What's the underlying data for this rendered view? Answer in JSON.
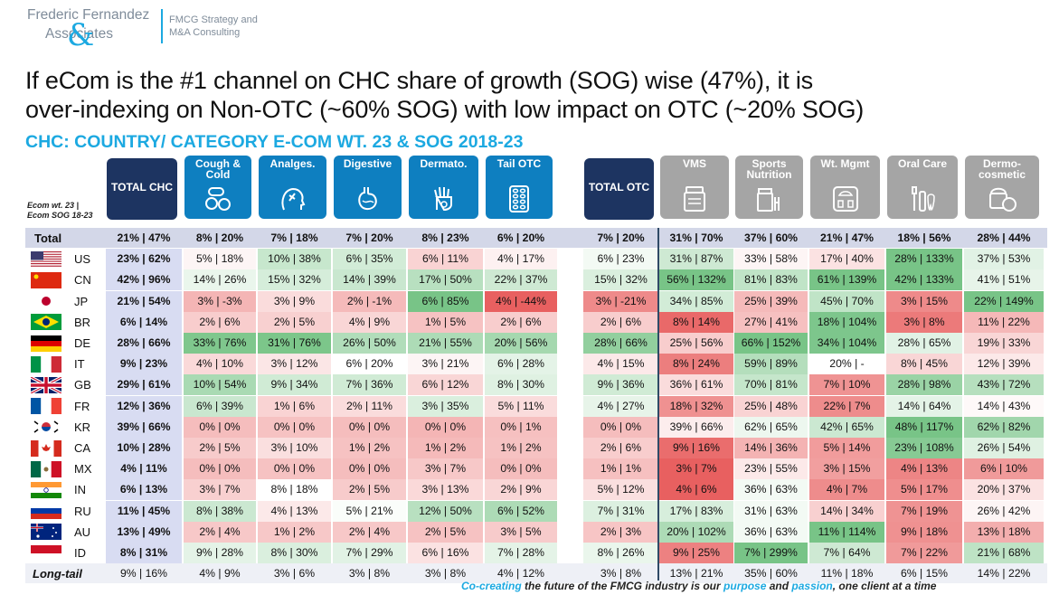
{
  "logo": {
    "line1": "Frederic Fernandez",
    "line2": "Associates",
    "ampersand": "&",
    "tag_line1": "FMCG Strategy and",
    "tag_line2": "M&A Consulting"
  },
  "title_line1": "If eCom is the #1 channel on CHC share of growth (SOG) wise (47%), it is",
  "title_line2": "over-indexing on Non-OTC (~60% SOG) with low impact on OTC (~20% SOG)",
  "subtitle": "CHC: COUNTRY/ CATEGORY E-COM WT. 23 & SOG 2018-23",
  "corner_note_line1": "Ecom wt. 23 |",
  "corner_note_line2": "Ecom SOG 18-23",
  "footer": {
    "part1": "Co-creating",
    "part2": " the future of the FMCG industry is our ",
    "part3": "purpose",
    "part4": " and ",
    "part5": "passion",
    "part6": ", one client at a time"
  },
  "colors": {
    "navy": "#1d3461",
    "blue": "#0e7fc0",
    "grey": "#a5a5a5",
    "accent": "#1ca9e1",
    "total_row_bg": "#d3d7e8",
    "chc_col_bg": "#d8dcf2"
  },
  "chart_data": {
    "type": "table",
    "columns": [
      {
        "label": "TOTAL CHC",
        "group": "total",
        "icon": ""
      },
      {
        "label": "Cough & Cold",
        "group": "otc",
        "icon": "pills-icon"
      },
      {
        "label": "Analges.",
        "group": "otc",
        "icon": "pain-head-icon"
      },
      {
        "label": "Digestive",
        "group": "otc",
        "icon": "stomach-icon"
      },
      {
        "label": "Dermato.",
        "group": "otc",
        "icon": "skin-hand-icon"
      },
      {
        "label": "Tail OTC",
        "group": "otc",
        "icon": "blister-pack-icon"
      },
      {
        "label": "TOTAL OTC",
        "group": "total",
        "icon": ""
      },
      {
        "label": "VMS",
        "group": "nonotc",
        "icon": "supplement-jar-icon"
      },
      {
        "label": "Sports Nutrition",
        "group": "nonotc",
        "icon": "protein-tub-icon"
      },
      {
        "label": "Wt. Mgmt",
        "group": "nonotc",
        "icon": "scale-icon"
      },
      {
        "label": "Oral Care",
        "group": "nonotc",
        "icon": "toothbrush-icon"
      },
      {
        "label": "Dermo-cosmetic",
        "group": "nonotc",
        "icon": "cream-jar-icon"
      }
    ],
    "rows": [
      {
        "label": "Total",
        "flag": "",
        "cells": [
          [
            21,
            47
          ],
          [
            8,
            20
          ],
          [
            7,
            18
          ],
          [
            7,
            20
          ],
          [
            8,
            23
          ],
          [
            6,
            20
          ],
          [
            7,
            20
          ],
          [
            31,
            70
          ],
          [
            37,
            60
          ],
          [
            21,
            47
          ],
          [
            18,
            56
          ],
          [
            28,
            44
          ]
        ]
      },
      {
        "label": "US",
        "flag": "us",
        "cells": [
          [
            23,
            62
          ],
          [
            5,
            18
          ],
          [
            10,
            38
          ],
          [
            6,
            35
          ],
          [
            6,
            11
          ],
          [
            4,
            17
          ],
          [
            6,
            23
          ],
          [
            31,
            87
          ],
          [
            33,
            58
          ],
          [
            17,
            40
          ],
          [
            28,
            133
          ],
          [
            37,
            53
          ]
        ]
      },
      {
        "label": "CN",
        "flag": "cn",
        "cells": [
          [
            42,
            96
          ],
          [
            14,
            26
          ],
          [
            15,
            32
          ],
          [
            14,
            39
          ],
          [
            17,
            50
          ],
          [
            22,
            37
          ],
          [
            15,
            32
          ],
          [
            56,
            132
          ],
          [
            81,
            83
          ],
          [
            61,
            139
          ],
          [
            42,
            133
          ],
          [
            41,
            51
          ]
        ]
      },
      {
        "label": "JP",
        "flag": "jp",
        "cells": [
          [
            21,
            54
          ],
          [
            3,
            -3
          ],
          [
            3,
            9
          ],
          [
            2,
            -1
          ],
          [
            6,
            85
          ],
          [
            4,
            -44
          ],
          [
            3,
            -21
          ],
          [
            34,
            85
          ],
          [
            25,
            39
          ],
          [
            45,
            70
          ],
          [
            3,
            15
          ],
          [
            22,
            149
          ]
        ]
      },
      {
        "label": "BR",
        "flag": "br",
        "cells": [
          [
            6,
            14
          ],
          [
            2,
            6
          ],
          [
            2,
            5
          ],
          [
            4,
            9
          ],
          [
            1,
            5
          ],
          [
            2,
            6
          ],
          [
            2,
            6
          ],
          [
            8,
            14
          ],
          [
            27,
            41
          ],
          [
            18,
            104
          ],
          [
            3,
            8
          ],
          [
            11,
            22
          ]
        ]
      },
      {
        "label": "DE",
        "flag": "de",
        "cells": [
          [
            28,
            66
          ],
          [
            33,
            76
          ],
          [
            31,
            76
          ],
          [
            26,
            50
          ],
          [
            21,
            55
          ],
          [
            20,
            56
          ],
          [
            28,
            66
          ],
          [
            25,
            56
          ],
          [
            66,
            152
          ],
          [
            34,
            104
          ],
          [
            28,
            65
          ],
          [
            19,
            33
          ]
        ]
      },
      {
        "label": "IT",
        "flag": "it",
        "cells": [
          [
            9,
            23
          ],
          [
            4,
            10
          ],
          [
            3,
            12
          ],
          [
            6,
            20
          ],
          [
            3,
            21
          ],
          [
            6,
            28
          ],
          [
            4,
            15
          ],
          [
            8,
            24
          ],
          [
            59,
            89
          ],
          [
            20,
            null
          ],
          [
            8,
            45
          ],
          [
            12,
            39
          ]
        ]
      },
      {
        "label": "GB",
        "flag": "gb",
        "cells": [
          [
            29,
            61
          ],
          [
            10,
            54
          ],
          [
            9,
            34
          ],
          [
            7,
            36
          ],
          [
            6,
            12
          ],
          [
            8,
            30
          ],
          [
            9,
            36
          ],
          [
            36,
            61
          ],
          [
            70,
            81
          ],
          [
            7,
            10
          ],
          [
            28,
            98
          ],
          [
            43,
            72
          ]
        ]
      },
      {
        "label": "FR",
        "flag": "fr",
        "cells": [
          [
            12,
            36
          ],
          [
            6,
            39
          ],
          [
            1,
            6
          ],
          [
            2,
            11
          ],
          [
            3,
            35
          ],
          [
            5,
            11
          ],
          [
            4,
            27
          ],
          [
            18,
            32
          ],
          [
            25,
            48
          ],
          [
            22,
            7
          ],
          [
            14,
            64
          ],
          [
            14,
            43
          ]
        ]
      },
      {
        "label": "KR",
        "flag": "kr",
        "cells": [
          [
            39,
            66
          ],
          [
            0,
            0
          ],
          [
            0,
            0
          ],
          [
            0,
            0
          ],
          [
            0,
            0
          ],
          [
            0,
            1
          ],
          [
            0,
            0
          ],
          [
            39,
            66
          ],
          [
            62,
            65
          ],
          [
            42,
            65
          ],
          [
            48,
            117
          ],
          [
            62,
            82
          ]
        ]
      },
      {
        "label": "CA",
        "flag": "ca",
        "cells": [
          [
            10,
            28
          ],
          [
            2,
            5
          ],
          [
            3,
            10
          ],
          [
            1,
            2
          ],
          [
            1,
            2
          ],
          [
            1,
            2
          ],
          [
            2,
            6
          ],
          [
            9,
            16
          ],
          [
            14,
            36
          ],
          [
            5,
            14
          ],
          [
            23,
            108
          ],
          [
            26,
            54
          ]
        ]
      },
      {
        "label": "MX",
        "flag": "mx",
        "cells": [
          [
            4,
            11
          ],
          [
            0,
            0
          ],
          [
            0,
            0
          ],
          [
            0,
            0
          ],
          [
            3,
            7
          ],
          [
            0,
            0
          ],
          [
            1,
            1
          ],
          [
            3,
            7
          ],
          [
            23,
            55
          ],
          [
            3,
            15
          ],
          [
            4,
            13
          ],
          [
            6,
            10
          ]
        ]
      },
      {
        "label": "IN",
        "flag": "in",
        "cells": [
          [
            6,
            13
          ],
          [
            3,
            7
          ],
          [
            8,
            18
          ],
          [
            2,
            5
          ],
          [
            3,
            13
          ],
          [
            2,
            9
          ],
          [
            5,
            12
          ],
          [
            4,
            6
          ],
          [
            36,
            63
          ],
          [
            4,
            7
          ],
          [
            5,
            17
          ],
          [
            20,
            37
          ]
        ]
      },
      {
        "label": "RU",
        "flag": "ru",
        "cells": [
          [
            11,
            45
          ],
          [
            8,
            38
          ],
          [
            4,
            13
          ],
          [
            5,
            21
          ],
          [
            12,
            50
          ],
          [
            6,
            52
          ],
          [
            7,
            31
          ],
          [
            17,
            83
          ],
          [
            31,
            63
          ],
          [
            14,
            34
          ],
          [
            7,
            19
          ],
          [
            26,
            42
          ]
        ]
      },
      {
        "label": "AU",
        "flag": "au",
        "cells": [
          [
            13,
            49
          ],
          [
            2,
            4
          ],
          [
            1,
            2
          ],
          [
            2,
            4
          ],
          [
            2,
            5
          ],
          [
            3,
            5
          ],
          [
            2,
            3
          ],
          [
            20,
            102
          ],
          [
            36,
            63
          ],
          [
            11,
            114
          ],
          [
            9,
            18
          ],
          [
            13,
            18
          ]
        ]
      },
      {
        "label": "ID",
        "flag": "id",
        "cells": [
          [
            8,
            31
          ],
          [
            9,
            28
          ],
          [
            8,
            30
          ],
          [
            7,
            29
          ],
          [
            6,
            16
          ],
          [
            7,
            28
          ],
          [
            8,
            26
          ],
          [
            9,
            25
          ],
          [
            7,
            299
          ],
          [
            7,
            64
          ],
          [
            7,
            22
          ],
          [
            21,
            68
          ]
        ]
      },
      {
        "label": "Long-tail",
        "flag": "",
        "cells": [
          [
            9,
            16
          ],
          [
            4,
            9
          ],
          [
            3,
            6
          ],
          [
            3,
            8
          ],
          [
            3,
            8
          ],
          [
            4,
            12
          ],
          [
            3,
            8
          ],
          [
            13,
            21
          ],
          [
            35,
            60
          ],
          [
            11,
            18
          ],
          [
            6,
            15
          ],
          [
            14,
            22
          ]
        ]
      }
    ]
  }
}
